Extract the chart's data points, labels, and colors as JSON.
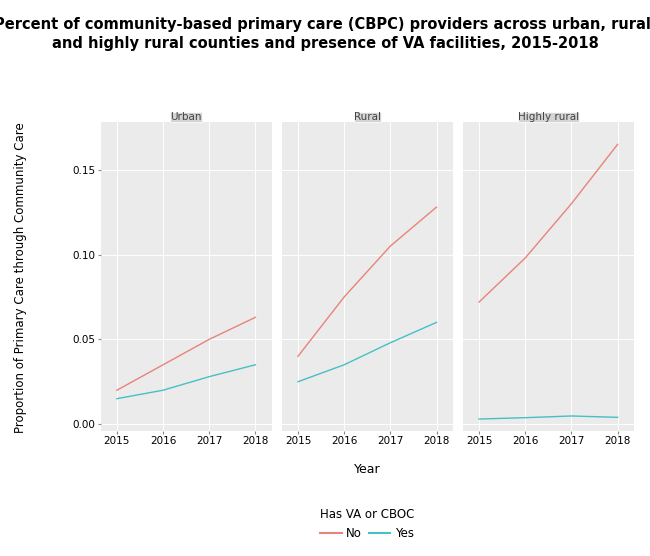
{
  "title": "Percent of community-based primary care (CBPC) providers across urban, rural,\nand highly rural counties and presence of VA facilities, 2015-2018",
  "panels": [
    "Urban",
    "Rural",
    "Highly rural"
  ],
  "years": [
    2015,
    2016,
    2017,
    2018
  ],
  "data": {
    "Urban": {
      "No": [
        0.02,
        0.035,
        0.05,
        0.063
      ],
      "Yes": [
        0.015,
        0.02,
        0.028,
        0.035
      ]
    },
    "Rural": {
      "No": [
        0.04,
        0.075,
        0.105,
        0.128
      ],
      "Yes": [
        0.025,
        0.035,
        0.048,
        0.06
      ]
    },
    "Highly rural": {
      "No": [
        0.072,
        0.098,
        0.13,
        0.165
      ],
      "Yes": [
        0.003,
        0.0038,
        0.0048,
        0.004
      ]
    }
  },
  "color_no": "#E8837A",
  "color_yes": "#45C0C4",
  "ylabel": "Proportion of Primary Care through Community Care",
  "xlabel": "Year",
  "ylim": [
    -0.004,
    0.178
  ],
  "yticks": [
    0.0,
    0.05,
    0.1,
    0.15
  ],
  "ytick_labels": [
    "0.00",
    "0.05",
    "0.10",
    "0.15"
  ],
  "legend_title": "Has VA or CBOC",
  "background_color": "#EBEBEB",
  "figure_background": "#FFFFFF",
  "title_fontsize": 10.5,
  "label_fontsize": 8.5,
  "tick_fontsize": 7.5,
  "panel_label_fontsize": 7.5
}
